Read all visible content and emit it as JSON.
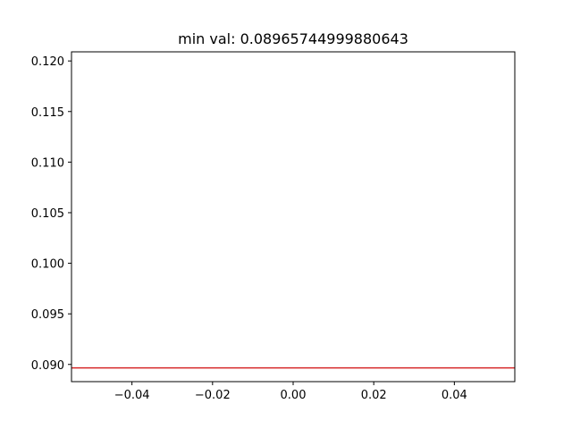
{
  "chart_data": {
    "type": "line",
    "title": "min val: 0.08965744999880643",
    "xlabel": "",
    "ylabel": "",
    "xlim": [
      -0.055,
      0.055
    ],
    "ylim": [
      0.0883,
      0.1209
    ],
    "xticks": [
      -0.04,
      -0.02,
      0.0,
      0.02,
      0.04
    ],
    "xtick_labels": [
      "−0.04",
      "−0.02",
      "0.00",
      "0.02",
      "0.04"
    ],
    "yticks": [
      0.09,
      0.095,
      0.1,
      0.105,
      0.11,
      0.115,
      0.12
    ],
    "ytick_labels": [
      "0.090",
      "0.095",
      "0.100",
      "0.105",
      "0.110",
      "0.115",
      "0.120"
    ],
    "grid": false,
    "legend": false,
    "hlines": [
      {
        "y": 0.08965744999880643,
        "color": "#d62728"
      }
    ],
    "colors": {
      "axes": "#000000",
      "line": "#d62728",
      "background": "#ffffff"
    }
  }
}
